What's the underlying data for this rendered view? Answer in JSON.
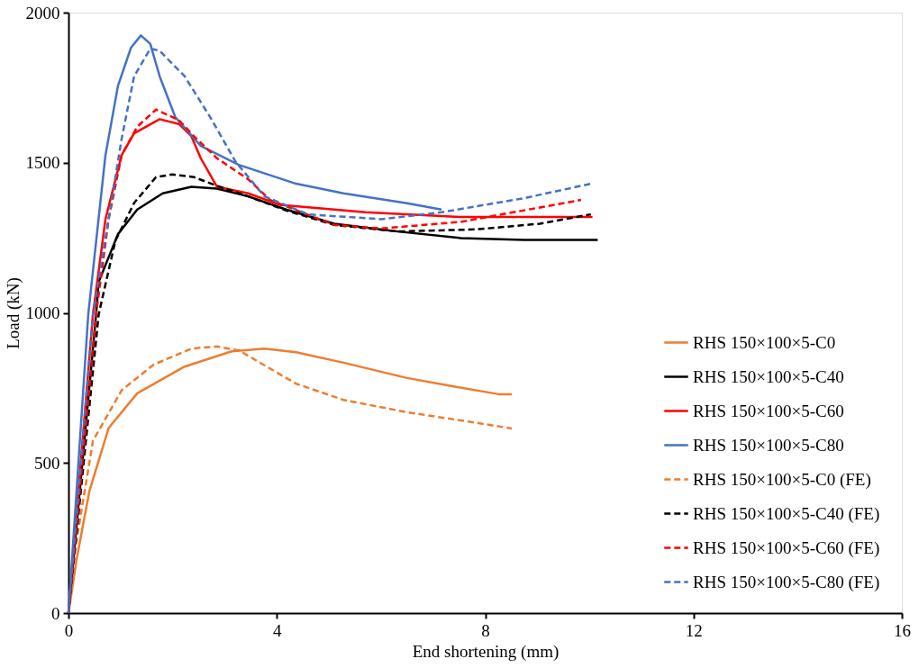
{
  "chart_data": {
    "type": "line",
    "xlabel": "End shortening (mm)",
    "ylabel": "Load (kN)",
    "xlim": [
      0,
      16
    ],
    "ylim": [
      0,
      2000
    ],
    "xticks": [
      0,
      4,
      8,
      12,
      16
    ],
    "yticks": [
      0,
      500,
      1000,
      1500,
      2000
    ],
    "grid": false,
    "legend": "bottom right",
    "marker": "none",
    "series": [
      {
        "name": "RHS 150×100×5-C0",
        "color": "#ed7d31",
        "line_style": "solid",
        "x": [
          0,
          0.16,
          0.4,
          0.77,
          1.32,
          2.23,
          3.14,
          3.76,
          4.37,
          5.28,
          6.5,
          7.42,
          8.26,
          8.51
        ],
        "values": [
          0,
          183,
          405,
          616,
          732,
          821,
          872,
          881,
          869,
          834,
          783,
          754,
          729,
          729
        ]
      },
      {
        "name": "RHS 150×100×5-C40",
        "color": "#000000",
        "line_style": "solid",
        "x": [
          0,
          0.53,
          0.58,
          0.95,
          1.32,
          1.81,
          2.36,
          2.85,
          3.45,
          4.18,
          5.1,
          6.32,
          7.53,
          8.75,
          10.16
        ],
        "values": [
          0,
          995,
          1103,
          1262,
          1344,
          1398,
          1420,
          1414,
          1388,
          1344,
          1297,
          1271,
          1249,
          1243,
          1243
        ]
      },
      {
        "name": "RHS 150×100×5-C60",
        "color": "#ff0000",
        "line_style": "solid",
        "x": [
          0,
          0.47,
          0.71,
          1.02,
          1.26,
          1.75,
          2.12,
          2.36,
          2.54,
          2.85,
          3.45,
          4.05,
          5.7,
          7.53,
          10.06
        ],
        "values": [
          0,
          995,
          1312,
          1525,
          1598,
          1645,
          1629,
          1588,
          1515,
          1420,
          1398,
          1360,
          1335,
          1319,
          1319
        ]
      },
      {
        "name": "RHS 150×100×5-C80",
        "color": "#4472c4",
        "line_style": "solid",
        "x": [
          0,
          0.38,
          0.71,
          0.95,
          1.2,
          1.39,
          1.57,
          1.75,
          2.05,
          2.54,
          3.27,
          4.37,
          5.28,
          6.5,
          7.16
        ],
        "values": [
          0,
          995,
          1525,
          1756,
          1883,
          1924,
          1896,
          1788,
          1652,
          1556,
          1493,
          1430,
          1398,
          1365,
          1344
        ]
      },
      {
        "name": "RHS 150×100×5-C0 (FE)",
        "color": "#ed7d31",
        "line_style": "dashed",
        "x": [
          0,
          0.13,
          0.47,
          1.02,
          1.63,
          2.36,
          2.85,
          3.27,
          4.37,
          5.28,
          6.5,
          7.71,
          8.51
        ],
        "values": [
          0,
          216,
          574,
          742,
          827,
          881,
          888,
          875,
          764,
          710,
          669,
          637,
          615
        ]
      },
      {
        "name": "RHS 150×100×5-C40 (FE)",
        "color": "#000000",
        "line_style": "dashed",
        "x": [
          0,
          0.58,
          0.9,
          1.26,
          1.68,
          1.99,
          2.41,
          2.85,
          3.45,
          4.18,
          5.1,
          6.32,
          7.83,
          9.05,
          10.03
        ],
        "values": [
          0,
          995,
          1240,
          1366,
          1452,
          1461,
          1452,
          1423,
          1388,
          1341,
          1293,
          1271,
          1278,
          1297,
          1328
        ]
      },
      {
        "name": "RHS 150×100×5-C60 (FE)",
        "color": "#ff0000",
        "line_style": "dashed",
        "x": [
          0,
          0.53,
          0.77,
          1.02,
          1.32,
          1.68,
          2.12,
          2.41,
          2.85,
          3.45,
          3.87,
          5.1,
          6.0,
          7.53,
          9.84
        ],
        "values": [
          0,
          995,
          1312,
          1525,
          1620,
          1677,
          1642,
          1588,
          1515,
          1445,
          1376,
          1293,
          1281,
          1303,
          1376
        ]
      },
      {
        "name": "RHS 150×100×5-C80 (FE)",
        "color": "#4472c4",
        "line_style": "dashed",
        "x": [
          0,
          0.47,
          0.77,
          1.02,
          1.26,
          1.57,
          1.75,
          2.23,
          2.72,
          3.21,
          3.76,
          4.6,
          6.0,
          7.16,
          8.75,
          10.03
        ],
        "values": [
          0,
          995,
          1312,
          1579,
          1788,
          1880,
          1873,
          1788,
          1652,
          1503,
          1388,
          1328,
          1312,
          1335,
          1382,
          1430
        ]
      }
    ]
  }
}
